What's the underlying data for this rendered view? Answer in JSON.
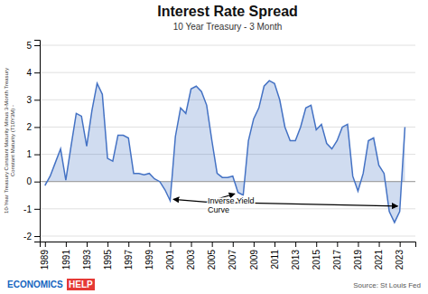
{
  "chart_data": {
    "type": "area",
    "title": "Interest Rate Spread",
    "subtitle": "10 Year Treasury - 3 Month",
    "y_label": "10-Year Treasury Constant Maturity Minus 3-Month Treasury\nConstant Maturity (T10Y3M) -",
    "source": "Source: St Louis Fed",
    "logo": [
      "ECONOMICS",
      "HELP"
    ],
    "color": "#4472C4",
    "x": [
      1989.0,
      1989.5,
      1990.0,
      1990.5,
      1991.0,
      1991.5,
      1992.0,
      1992.5,
      1993.0,
      1993.5,
      1994.0,
      1994.5,
      1995.0,
      1995.5,
      1996.0,
      1996.5,
      1997.0,
      1997.5,
      1998.0,
      1998.5,
      1999.0,
      1999.5,
      2000.0,
      2000.5,
      2001.0,
      2001.5,
      2002.0,
      2002.5,
      2003.0,
      2003.5,
      2004.0,
      2004.5,
      2005.0,
      2005.5,
      2006.0,
      2006.5,
      2007.0,
      2007.5,
      2008.0,
      2008.5,
      2009.0,
      2009.5,
      2010.0,
      2010.5,
      2011.0,
      2011.5,
      2012.0,
      2012.5,
      2013.0,
      2013.5,
      2014.0,
      2014.5,
      2015.0,
      2015.5,
      2016.0,
      2016.5,
      2017.0,
      2017.5,
      2018.0,
      2018.5,
      2019.0,
      2019.5,
      2020.0,
      2020.5,
      2021.0,
      2021.5,
      2022.0,
      2022.5,
      2023.0,
      2023.5
    ],
    "values": [
      -0.15,
      0.2,
      0.7,
      1.2,
      0.05,
      1.3,
      2.5,
      2.4,
      1.3,
      2.6,
      3.6,
      3.2,
      0.85,
      0.75,
      1.7,
      1.7,
      1.6,
      0.3,
      0.3,
      0.25,
      0.3,
      0.1,
      0.0,
      -0.3,
      -0.7,
      1.65,
      2.7,
      2.5,
      3.4,
      3.5,
      3.3,
      2.8,
      1.5,
      0.3,
      0.15,
      0.15,
      0.2,
      -0.4,
      -0.5,
      1.5,
      2.3,
      2.7,
      3.5,
      3.7,
      3.6,
      3.0,
      2.0,
      1.5,
      1.5,
      2.0,
      2.7,
      2.8,
      1.9,
      2.1,
      1.4,
      1.2,
      1.5,
      2.0,
      2.1,
      0.2,
      -0.35,
      0.3,
      1.5,
      1.6,
      0.6,
      0.3,
      -1.1,
      -1.5,
      -1.1,
      2.0
    ],
    "xlim": [
      1988.5,
      2024.5
    ],
    "xticks": [
      1989,
      1991,
      1993,
      1995,
      1997,
      1999,
      2001,
      2003,
      2005,
      2007,
      2009,
      2011,
      2013,
      2015,
      2017,
      2019,
      2021,
      2023
    ],
    "ylim": [
      -2.2,
      5.2
    ],
    "yticks": [
      -2,
      -1,
      0,
      1,
      2,
      3,
      4,
      5
    ],
    "grid": true,
    "annotations": [
      {
        "text": "Inverse Yield\nCurve",
        "x": 2004.6,
        "y": -0.55,
        "arrow_from": [
          2004.5,
          -0.75
        ],
        "arrow_to": [
          [
            2001.3,
            -0.65
          ],
          [
            2007.2,
            -0.45
          ],
          [
            2022.8,
            -0.9
          ]
        ]
      }
    ]
  }
}
